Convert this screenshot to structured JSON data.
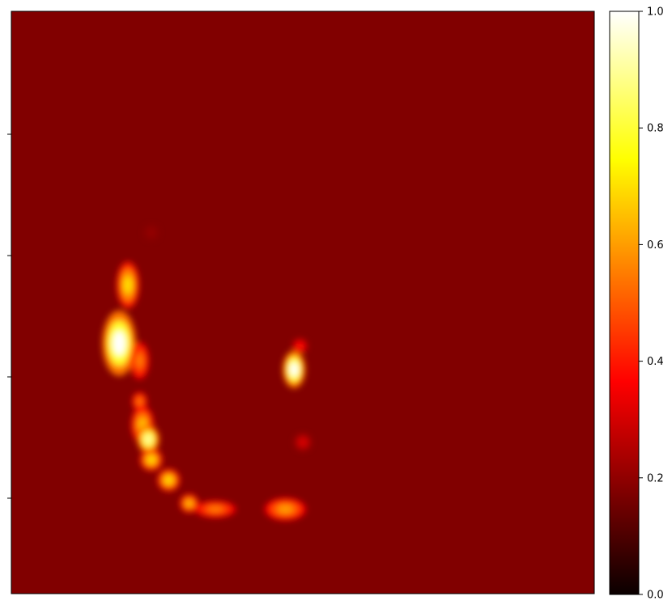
{
  "chart_data": {
    "type": "heatmap",
    "title": "",
    "xlabel": "",
    "ylabel": "",
    "colormap": "hot",
    "background_value": 0.17,
    "x_tick_labels": [],
    "y_tick_labels": [
      "",
      "",
      "",
      ""
    ],
    "blobs": [
      {
        "x": 0.185,
        "y": 0.57,
        "rx": 0.018,
        "ry": 0.035,
        "value": 1.0
      },
      {
        "x": 0.2,
        "y": 0.47,
        "rx": 0.012,
        "ry": 0.025,
        "value": 0.7
      },
      {
        "x": 0.22,
        "y": 0.6,
        "rx": 0.01,
        "ry": 0.02,
        "value": 0.55
      },
      {
        "x": 0.22,
        "y": 0.67,
        "rx": 0.008,
        "ry": 0.01,
        "value": 0.55
      },
      {
        "x": 0.225,
        "y": 0.71,
        "rx": 0.012,
        "ry": 0.02,
        "value": 0.65
      },
      {
        "x": 0.235,
        "y": 0.735,
        "rx": 0.012,
        "ry": 0.015,
        "value": 0.9
      },
      {
        "x": 0.24,
        "y": 0.77,
        "rx": 0.012,
        "ry": 0.012,
        "value": 0.7
      },
      {
        "x": 0.27,
        "y": 0.805,
        "rx": 0.012,
        "ry": 0.012,
        "value": 0.7
      },
      {
        "x": 0.305,
        "y": 0.845,
        "rx": 0.01,
        "ry": 0.01,
        "value": 0.65
      },
      {
        "x": 0.35,
        "y": 0.855,
        "rx": 0.022,
        "ry": 0.009,
        "value": 0.55
      },
      {
        "x": 0.47,
        "y": 0.855,
        "rx": 0.022,
        "ry": 0.012,
        "value": 0.6
      },
      {
        "x": 0.485,
        "y": 0.615,
        "rx": 0.012,
        "ry": 0.02,
        "value": 1.0
      },
      {
        "x": 0.495,
        "y": 0.575,
        "rx": 0.008,
        "ry": 0.008,
        "value": 0.4
      },
      {
        "x": 0.5,
        "y": 0.74,
        "rx": 0.009,
        "ry": 0.009,
        "value": 0.3
      },
      {
        "x": 0.24,
        "y": 0.38,
        "rx": 0.008,
        "ry": 0.008,
        "value": 0.2
      }
    ],
    "colorbar": {
      "vmin": 0.0,
      "vmax": 1.0,
      "ticks": [
        0.0,
        0.2,
        0.4,
        0.6,
        0.8,
        1.0
      ],
      "tick_labels": [
        "0.0",
        "0.2",
        "0.4",
        "0.6",
        "0.8",
        "1.0"
      ]
    }
  }
}
